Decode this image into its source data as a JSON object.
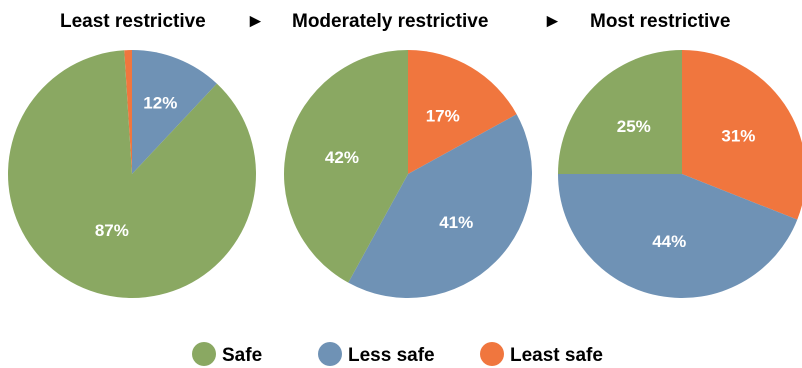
{
  "chart_data": [
    {
      "type": "pie",
      "title": "Least restrictive",
      "categories": [
        "Safe",
        "Less safe",
        "Least safe"
      ],
      "values": [
        87,
        12,
        1
      ],
      "labels": [
        "87%",
        "12%",
        ""
      ]
    },
    {
      "type": "pie",
      "title": "Moderately restrictive",
      "categories": [
        "Safe",
        "Less safe",
        "Least safe"
      ],
      "values": [
        42,
        41,
        17
      ],
      "labels": [
        "42%",
        "41%",
        "17%"
      ]
    },
    {
      "type": "pie",
      "title": "Most restrictive",
      "categories": [
        "Safe",
        "Less safe",
        "Least safe"
      ],
      "values": [
        25,
        44,
        31
      ],
      "labels": [
        "25%",
        "44%",
        "31%"
      ]
    }
  ],
  "legend": {
    "placement": "bottom",
    "items": [
      {
        "label": "Safe",
        "color": "#8aa862"
      },
      {
        "label": "Less safe",
        "color": "#6f92b5"
      },
      {
        "label": "Least safe",
        "color": "#f0763e"
      }
    ]
  },
  "arrow_glyph": "►"
}
